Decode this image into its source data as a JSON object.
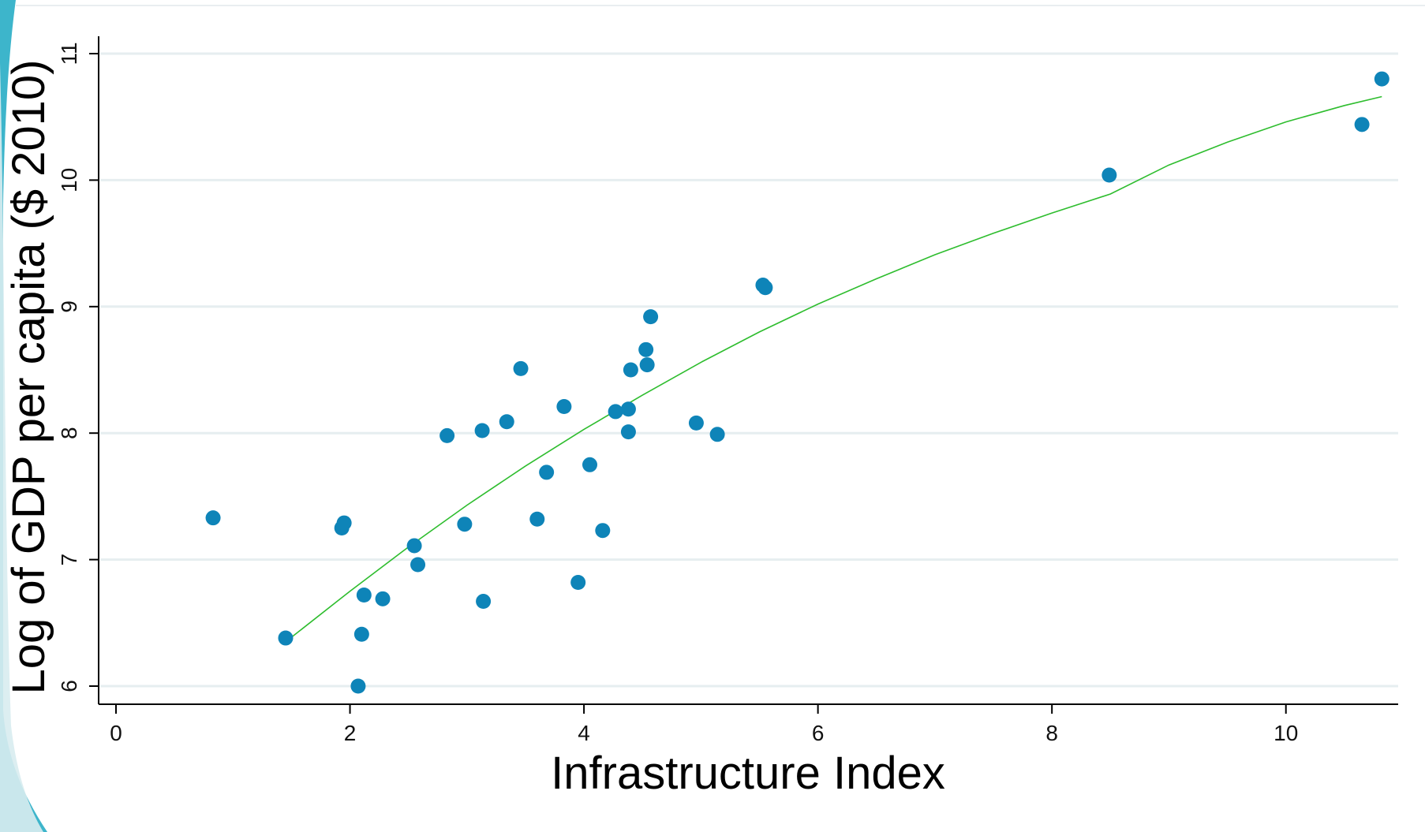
{
  "chart_data": {
    "type": "scatter",
    "title": "",
    "xlabel": "Infrastructure Index",
    "ylabel": "Log of GDP per capita ($ 2010)",
    "xlim": [
      0,
      11
    ],
    "ylim": [
      6,
      11
    ],
    "xticks": [
      0,
      2,
      4,
      6,
      8,
      10
    ],
    "yticks": [
      6,
      7,
      8,
      9,
      10,
      11
    ],
    "grid": "horizontal",
    "legend": "none",
    "colors": {
      "points": "#0e84b8",
      "fit_line": "#2ebd2e",
      "grid": "#e6eef0",
      "axis": "#000000"
    },
    "points": [
      {
        "x": 0.83,
        "y": 7.33
      },
      {
        "x": 1.45,
        "y": 6.38
      },
      {
        "x": 1.93,
        "y": 7.25
      },
      {
        "x": 1.95,
        "y": 7.29
      },
      {
        "x": 2.07,
        "y": 6.0
      },
      {
        "x": 2.1,
        "y": 6.41
      },
      {
        "x": 2.12,
        "y": 6.72
      },
      {
        "x": 2.28,
        "y": 6.69
      },
      {
        "x": 2.55,
        "y": 7.11
      },
      {
        "x": 2.58,
        "y": 6.96
      },
      {
        "x": 2.83,
        "y": 7.98
      },
      {
        "x": 2.98,
        "y": 7.28
      },
      {
        "x": 3.13,
        "y": 8.02
      },
      {
        "x": 3.14,
        "y": 6.67
      },
      {
        "x": 3.34,
        "y": 8.09
      },
      {
        "x": 3.46,
        "y": 8.51
      },
      {
        "x": 3.6,
        "y": 7.32
      },
      {
        "x": 3.68,
        "y": 7.69
      },
      {
        "x": 3.83,
        "y": 8.21
      },
      {
        "x": 3.95,
        "y": 6.82
      },
      {
        "x": 4.05,
        "y": 7.75
      },
      {
        "x": 4.16,
        "y": 7.23
      },
      {
        "x": 4.27,
        "y": 8.17
      },
      {
        "x": 4.38,
        "y": 8.19
      },
      {
        "x": 4.38,
        "y": 8.01
      },
      {
        "x": 4.4,
        "y": 8.5
      },
      {
        "x": 4.53,
        "y": 8.66
      },
      {
        "x": 4.54,
        "y": 8.54
      },
      {
        "x": 4.57,
        "y": 8.92
      },
      {
        "x": 4.96,
        "y": 8.08
      },
      {
        "x": 5.14,
        "y": 7.99
      },
      {
        "x": 5.53,
        "y": 9.17
      },
      {
        "x": 5.55,
        "y": 9.15
      },
      {
        "x": 8.49,
        "y": 10.04
      },
      {
        "x": 10.65,
        "y": 10.44
      },
      {
        "x": 10.82,
        "y": 10.8
      }
    ],
    "fit_line": {
      "x": [
        1.45,
        2.0,
        2.5,
        3.0,
        3.5,
        4.0,
        4.5,
        5.0,
        5.5,
        6.0,
        6.5,
        7.0,
        7.5,
        8.0,
        8.5,
        9.0,
        9.5,
        10.0,
        10.5,
        10.82
      ],
      "y": [
        6.35,
        6.75,
        7.1,
        7.43,
        7.74,
        8.03,
        8.3,
        8.56,
        8.8,
        9.02,
        9.22,
        9.41,
        9.58,
        9.74,
        9.89,
        10.12,
        10.3,
        10.46,
        10.59,
        10.66
      ]
    }
  }
}
